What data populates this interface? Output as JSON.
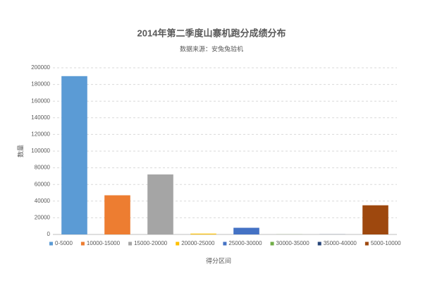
{
  "chart_data": {
    "type": "bar",
    "title": "2014年第二季度山寨机跑分成绩分布",
    "subtitle": "数据来源：安兔兔验机",
    "y_label": "数量",
    "x_label": "得分区间",
    "series": [
      {
        "name": "0-5000",
        "color": "#5b9bd5",
        "values": [
          190000
        ]
      },
      {
        "name": "10000-15000",
        "color": "#ed7d31",
        "values": [
          47000
        ]
      },
      {
        "name": "15000-20000",
        "color": "#a5a5a5",
        "values": [
          72000
        ]
      },
      {
        "name": "20000-25000",
        "color": "#ffc000",
        "values": [
          1000
        ]
      },
      {
        "name": "25000-30000",
        "color": "#4472c4",
        "values": [
          8000
        ]
      },
      {
        "name": "30000-35000",
        "color": "#70ad47",
        "values": [
          100
        ]
      },
      {
        "name": "35000-40000",
        "color": "#264478",
        "values": [
          100
        ]
      },
      {
        "name": "5000-10000",
        "color": "#9e480e",
        "values": [
          35000
        ]
      }
    ],
    "ylim": [
      0,
      200000
    ],
    "yticks": [
      0,
      20000,
      40000,
      60000,
      80000,
      100000,
      120000,
      140000,
      160000,
      180000,
      200000
    ],
    "grid": true,
    "legend": "bottom"
  }
}
